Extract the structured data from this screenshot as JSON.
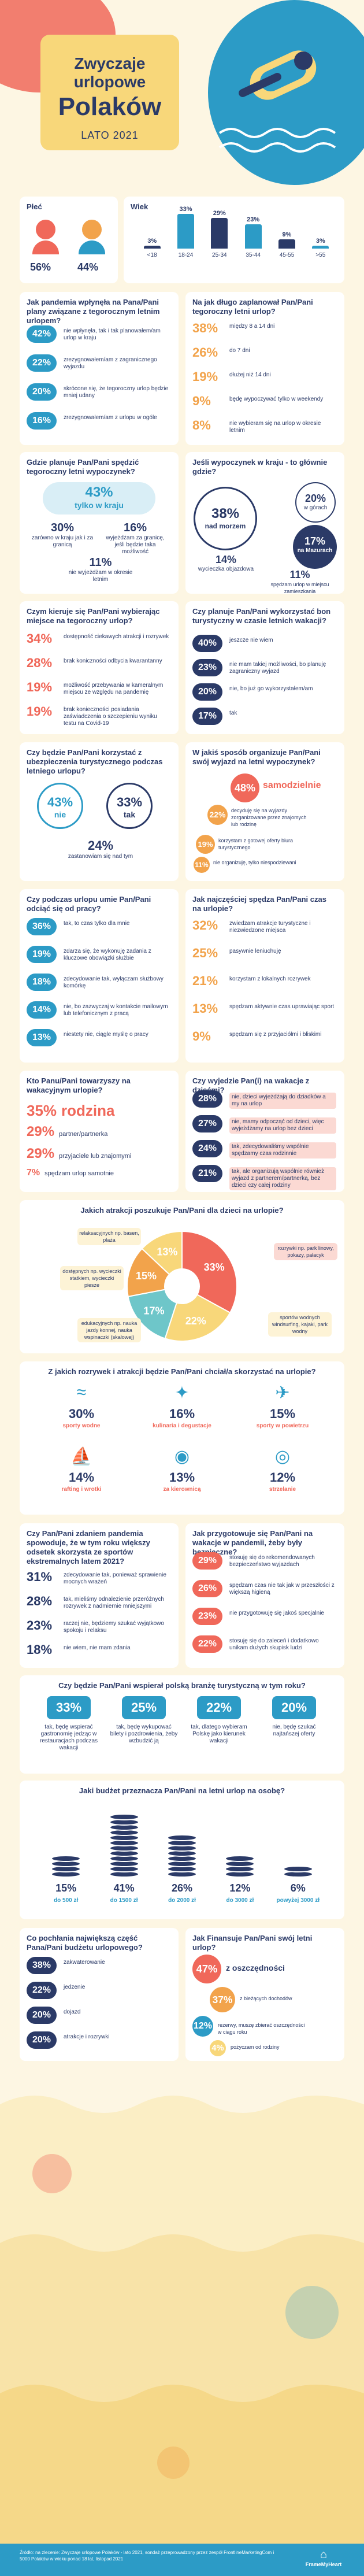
{
  "header": {
    "title1": "Zwyczaje urlopowe",
    "title2": "Polaków",
    "subtitle": "LATO 2021"
  },
  "gender": {
    "title": "Płeć",
    "female": "56%",
    "male": "44%"
  },
  "age": {
    "title": "Wiek",
    "items": [
      {
        "label": "<18",
        "value": "3%"
      },
      {
        "label": "18-24",
        "value": "33%"
      },
      {
        "label": "25-34",
        "value": "29%"
      },
      {
        "label": "35-44",
        "value": "23%"
      },
      {
        "label": "45-55",
        "value": "9%"
      },
      {
        "label": ">55",
        "value": "3%"
      }
    ],
    "values_num": [
      3,
      33,
      29,
      23,
      9,
      3
    ]
  },
  "q1": {
    "title": "Jak pandemia wpłynęła na Pana/Pani plany związane z tegorocznym letnim urlopem?",
    "items": [
      {
        "v": "42%",
        "t": "nie wpłynęła, tak i tak planowałem/am urlop w kraju"
      },
      {
        "v": "22%",
        "t": "zrezygnowałem/am z zagranicznego wyjazdu"
      },
      {
        "v": "20%",
        "t": "skrócone się, że tegoroczny urlop będzie mniej udany"
      },
      {
        "v": "16%",
        "t": "zrezygnowałem/am z urlopu w ogóle"
      }
    ]
  },
  "q2": {
    "title": "Na jak długo zaplanował Pan/Pani tegoroczny letni urlop?",
    "items": [
      {
        "v": "38%",
        "t": "między 8 a 14 dni"
      },
      {
        "v": "26%",
        "t": "do 7 dni"
      },
      {
        "v": "19%",
        "t": "dłużej niż 14 dni"
      },
      {
        "v": "9%",
        "t": "będę wypoczywać tylko w weekendy"
      },
      {
        "v": "8%",
        "t": "nie wybieram się na urlop w okresie letnim"
      }
    ]
  },
  "q3": {
    "title": "Gdzie planuje Pan/Pani spędzić tegoroczny letni wypoczynek?",
    "main_v": "43%",
    "main_t": "tylko w kraju",
    "a_v": "30%",
    "a_t": "zarówno w kraju jak i za granicą",
    "b_v": "16%",
    "b_t": "wyjeżdżam za granicę, jeśli będzie taka możliwość",
    "c_v": "11%",
    "c_t": "nie wyjeżdżam w okresie letnim"
  },
  "q4": {
    "title": "Jeśli wypoczynek w kraju - to głównie gdzie?",
    "a_v": "38%",
    "a_t": "nad morzem",
    "b_v": "20%",
    "b_t": "w górach",
    "c_v": "17%",
    "c_t": "na Mazurach",
    "d_v": "14%",
    "d_t": "wycieczka objazdowa",
    "e_v": "11%",
    "e_t": "spędzam urlop w miejscu zamieszkania"
  },
  "q5": {
    "title": "Czym kieruje się Pan/Pani wybierając miejsce na tegoroczny urlop?",
    "items": [
      {
        "v": "34%",
        "t": "dostępność ciekawych atrakcji i rozrywek"
      },
      {
        "v": "28%",
        "t": "brak koniczności odbycia kwarantanny"
      },
      {
        "v": "19%",
        "t": "możliwość przebywania w kameralnym miejscu ze względu na pandemię"
      },
      {
        "v": "19%",
        "t": "brak konieczności posiadania zaświadczenia o szczepieniu wyniku testu na Covid-19"
      }
    ]
  },
  "q6": {
    "title": "Czy planuje Pan/Pani wykorzystać bon turystyczny w czasie letnich wakacji?",
    "items": [
      {
        "v": "40%",
        "t": "jeszcze nie wiem"
      },
      {
        "v": "23%",
        "t": "nie mam takiej możliwości, bo planuję zagraniczny wyjazd"
      },
      {
        "v": "20%",
        "t": "nie, bo już go wykorzystałem/am"
      },
      {
        "v": "17%",
        "t": "tak"
      }
    ]
  },
  "q7": {
    "title": "Czy będzie Pan/Pani korzystać z ubezpieczenia turystycznego podczas letniego urlopu?",
    "a_v": "43%",
    "a_t": "nie",
    "b_v": "33%",
    "b_t": "tak",
    "c_v": "24%",
    "c_t": "zastanowiam się nad tym"
  },
  "q8": {
    "title": "W jakiś sposób organizuje Pan/Pani swój wyjazd na letni wypoczynek?",
    "items": [
      {
        "v": "48%",
        "t": "samodzielnie"
      },
      {
        "v": "22%",
        "t": "decyduję się na wyjazdy zorganizowane przez znajomych lub rodzinę"
      },
      {
        "v": "19%",
        "t": "korzystam z gotowej oferty biura turystycznego"
      },
      {
        "v": "11%",
        "t": "nie organizuję, tylko niespodziewani"
      }
    ],
    "values_num": [
      48,
      22,
      19,
      11
    ]
  },
  "q9": {
    "title": "Czy podczas urlopu umie Pan/Pani odciąć się od pracy?",
    "items": [
      {
        "v": "36%",
        "t": "tak, to czas tylko dla mnie"
      },
      {
        "v": "19%",
        "t": "zdarza się, że wykonuję zadania z kluczowe obowiązki służbie"
      },
      {
        "v": "18%",
        "t": "zdecydowanie tak, wyłączam służbowy komórkę"
      },
      {
        "v": "14%",
        "t": "nie, bo zazwyczaj w kontakcie mailowym lub telefonicznym z pracą"
      },
      {
        "v": "13%",
        "t": "niestety nie, ciągle myślę o pracy"
      }
    ]
  },
  "q10": {
    "title": "Jak najczęściej spędza Pan/Pani czas na urlopie?",
    "items": [
      {
        "v": "32%",
        "t": "zwiedzam atrakcje turystyczne i niezwiedzone miejsca"
      },
      {
        "v": "25%",
        "t": "pasywnie leniuchuję"
      },
      {
        "v": "21%",
        "t": "korzystam z lokalnych rozrywek"
      },
      {
        "v": "13%",
        "t": "spędzam aktywnie czas uprawiając sport"
      },
      {
        "v": "9%",
        "t": "spędzam się z przyjaciółmi i bliskimi"
      }
    ]
  },
  "q11": {
    "title": "Kto Panu/Pani towarzyszy na wakacyjnym urlopie?",
    "items": [
      {
        "v": "35%",
        "t": "rodzina"
      },
      {
        "v": "29%",
        "t": "partner/partnerka"
      },
      {
        "v": "29%",
        "t": "przyjaciele lub znajomymi"
      },
      {
        "v": "7%",
        "t": "spędzam urlop samotnie"
      }
    ],
    "values_num": [
      35,
      29,
      29,
      7
    ]
  },
  "q12": {
    "title": "Czy wyjedzie Pan(i) na wakacje z dziećmi?",
    "items": [
      {
        "v": "28%",
        "t": "nie, dzieci wyjeżdżają do dziadków a my na urlop"
      },
      {
        "v": "27%",
        "t": "nie, mamy odpocząć od dzieci, więc wyjeżdżamy na urlop bez dzieci"
      },
      {
        "v": "24%",
        "t": "tak, zdecydowaliśmy wspólnie spędzamy czas rodzinnie"
      },
      {
        "v": "21%",
        "t": "tak, ale organizują wspólnie również wyjazd z partnerem/partnerką, bez dzieci czy całej rodziny"
      }
    ]
  },
  "q13": {
    "title": "Jakich atrakcji poszukuje Pan/Pani dla dzieci na urlopie?",
    "items": [
      {
        "v": "33%",
        "t": "rozrywki np. park linowy, pokazy, pałacyk"
      },
      {
        "v": "22%",
        "t": "sportów wodnych windsurfing, kajaki, park wodny"
      },
      {
        "v": "17%",
        "t": "edukacyjnych np. nauka jazdy konnej, nauka wspinaczki (skałowej)"
      },
      {
        "v": "15%",
        "t": "dostępnych np. wycieczki statkiem, wycieczki piesze"
      },
      {
        "v": "13%",
        "t": "relaksacyjnych np. basen, plaża"
      }
    ],
    "values_num": [
      33,
      22,
      17,
      15,
      13
    ]
  },
  "q14": {
    "title": "Z jakich rozrywek i atrakcji będzie Pan/Pani chciał/a skorzystać na urlopie?",
    "items": [
      {
        "v": "30%",
        "t": "sporty wodne"
      },
      {
        "v": "16%",
        "t": "kulinaria i degustacje"
      },
      {
        "v": "15%",
        "t": "sporty w powietrzu"
      },
      {
        "v": "14%",
        "t": "rafting i wrotki"
      },
      {
        "v": "13%",
        "t": "za kierownicą"
      },
      {
        "v": "12%",
        "t": "strzelanie"
      }
    ]
  },
  "q15": {
    "title": "Czy Pan/Pani zdaniem pandemia spowoduje, że w tym roku większy odsetek skorzysta ze sportów ekstremalnych latem 2021?",
    "items": [
      {
        "v": "31%",
        "t": "zdecydowanie tak, ponieważ sprawienie mocnych wrażeń"
      },
      {
        "v": "28%",
        "t": "tak, mieliśmy odnalezienie przeróżnych rozrywek z nadmiernie mniejszymi"
      },
      {
        "v": "23%",
        "t": "raczej nie, będziemy szukać wyjątkowo spokoju i relaksu"
      },
      {
        "v": "18%",
        "t": "nie wiem, nie mam zdania"
      }
    ]
  },
  "q16": {
    "title": "Jak przygotowuje się Pan/Pani na wakacje w pandemii, żeby były bezpieczne?",
    "items": [
      {
        "v": "29%",
        "t": "stosuję się do rekomendowanych bezpieczeństwo wyjazdach"
      },
      {
        "v": "26%",
        "t": "spędzam czas nie tak jak w przeszłości z większą higieną"
      },
      {
        "v": "23%",
        "t": "nie przygotowuję się jakoś specjalnie"
      },
      {
        "v": "22%",
        "t": "stosuję się do zaleceń i dodatkowo unikam dużych skupisk ludzi"
      }
    ]
  },
  "q17": {
    "title": "Czy będzie Pan/Pani wspierał polską branżę turystyczną w tym roku?",
    "items": [
      {
        "v": "33%",
        "t": "tak, będę wspierać gastronomię jedząc w restauracjach podczas wakacji"
      },
      {
        "v": "25%",
        "t": "tak, będę wykupować bilety i pozdrowienia, żeby wzbudzić ją"
      },
      {
        "v": "22%",
        "t": "tak, dlatego wybieram Polskę jako kierunek wakacji"
      },
      {
        "v": "20%",
        "t": "nie, będę szukać najtańszej oferty"
      }
    ]
  },
  "q18": {
    "title": "Jaki budżet przeznacza Pan/Pani na letni urlop na osobę?",
    "items": [
      {
        "v": "15%",
        "l": "do 500 zł"
      },
      {
        "v": "41%",
        "l": "do 1500 zł"
      },
      {
        "v": "26%",
        "l": "do 2000 zł"
      },
      {
        "v": "12%",
        "l": "do 3000 zł"
      },
      {
        "v": "6%",
        "l": "powyżej 3000 zł"
      }
    ],
    "values_num": [
      15,
      41,
      26,
      12,
      6
    ]
  },
  "q19": {
    "title": "Co pochłania największą część Pana/Pani budżetu urlopowego?",
    "items": [
      {
        "v": "38%",
        "t": "zakwaterowanie"
      },
      {
        "v": "22%",
        "t": "jedzenie"
      },
      {
        "v": "20%",
        "t": "dojazd"
      },
      {
        "v": "20%",
        "t": "atrakcje i rozrywki"
      }
    ],
    "values_num": [
      38,
      22,
      20,
      20
    ]
  },
  "q20": {
    "title": "Jak Finansuje Pan/Pani swój letni urlop?",
    "items": [
      {
        "v": "47%",
        "t": "z oszczędności"
      },
      {
        "v": "37%",
        "t": "z bieżących dochodów"
      },
      {
        "v": "12%",
        "t": "rezerwy, muszę zbierać oszczędności w ciągu roku"
      },
      {
        "v": "4%",
        "t": "pożyczam od rodziny"
      }
    ]
  },
  "footer": {
    "note": "Źródło: na zlecenie: Zwyczaje urlopowe Polaków - lato 2021, sondaż przeprowadzony przez zespół FrontlineMarketingCom i 5000 Polaków w wieku ponad 18 lat, listopad 2021",
    "logo": "FrameMyHeart"
  },
  "colors": {
    "blue": "#2c9bc6",
    "red": "#f0685a",
    "orange": "#f2a34b",
    "yellow": "#f8d77a",
    "navy": "#2b3a67",
    "teal": "#6ec6c9"
  }
}
